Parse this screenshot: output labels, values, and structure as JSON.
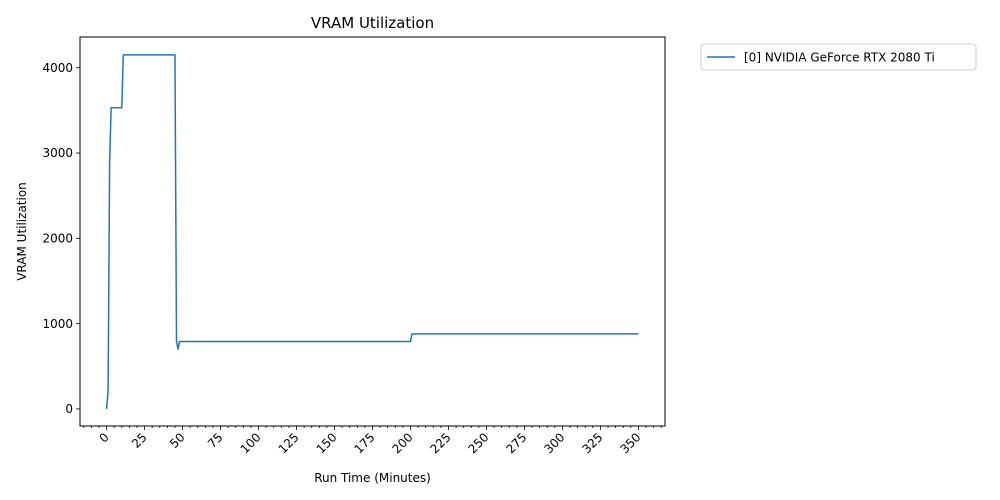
{
  "chart_data": {
    "type": "line",
    "title": "VRAM Utilization",
    "xlabel": "Run Time (Minutes)",
    "ylabel": "VRAM Utilization",
    "xlim": [
      -17.5,
      367.5
    ],
    "ylim": [
      -200,
      4360
    ],
    "x_ticks": [
      0,
      25,
      50,
      75,
      100,
      125,
      150,
      175,
      200,
      225,
      250,
      275,
      300,
      325,
      350
    ],
    "x_tick_labels": [
      "0",
      "25",
      "50",
      "75",
      "100",
      "125",
      "150",
      "175",
      "200",
      "225",
      "250",
      "275",
      "300",
      "325",
      "350"
    ],
    "x_minor_step": 5,
    "y_ticks": [
      0,
      1000,
      2000,
      3000,
      4000
    ],
    "y_tick_labels": [
      "0",
      "1000",
      "2000",
      "3000",
      "4000"
    ],
    "grid": false,
    "legend_position": "outside-top-right",
    "series": [
      {
        "name": "[0] NVIDIA GeForce RTX 2080 Ti",
        "color": "#1f77b4",
        "x": [
          0,
          1,
          2,
          3,
          10,
          11,
          45,
          46,
          47,
          48,
          200,
          201,
          350
        ],
        "y": [
          0,
          220,
          2900,
          3530,
          3530,
          4150,
          4150,
          800,
          700,
          790,
          790,
          880,
          880
        ]
      }
    ]
  }
}
